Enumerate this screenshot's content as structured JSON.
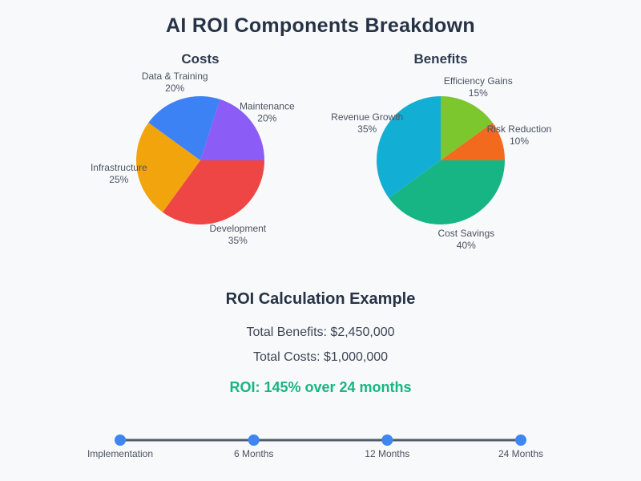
{
  "title": "AI ROI Components Breakdown",
  "chart_data": [
    {
      "type": "pie",
      "title": "Costs",
      "direction": "clockwise",
      "start_angle_deg_from_top": 90,
      "labels_position": "outside",
      "labels": [
        "Development",
        "Infrastructure",
        "Data & Training",
        "Maintenance"
      ],
      "values": [
        35,
        25,
        20,
        20
      ],
      "value_suffix": "%",
      "colors": [
        "#ee4545",
        "#f2a40d",
        "#3d82f4",
        "#8b5cf6"
      ]
    },
    {
      "type": "pie",
      "title": "Benefits",
      "direction": "clockwise",
      "start_angle_deg_from_top": 0,
      "labels_position": "outside",
      "labels": [
        "Efficiency Gains",
        "Risk Reduction",
        "Cost Savings",
        "Revenue Growth"
      ],
      "values": [
        15,
        10,
        40,
        35
      ],
      "value_suffix": "%",
      "colors": [
        "#7dc72e",
        "#f26a1e",
        "#16b583",
        "#13aed3"
      ]
    }
  ],
  "summary": {
    "heading": "ROI Calculation Example",
    "total_benefits_line": "Total Benefits: $2,450,000",
    "total_costs_line": "Total Costs: $1,000,000",
    "roi_line": "ROI: 145% over 24 months",
    "roi_color": "#17b583"
  },
  "timeline": {
    "milestones": [
      "Implementation",
      "6 Months",
      "12 Months",
      "24 Months"
    ],
    "dot_color": "#3f86f3",
    "line_color": "#515c6b"
  },
  "colors": {
    "background": "#f8f9fa",
    "heading_text": "#263246",
    "body_text": "#3d4656",
    "label_text": "#4a5362"
  }
}
